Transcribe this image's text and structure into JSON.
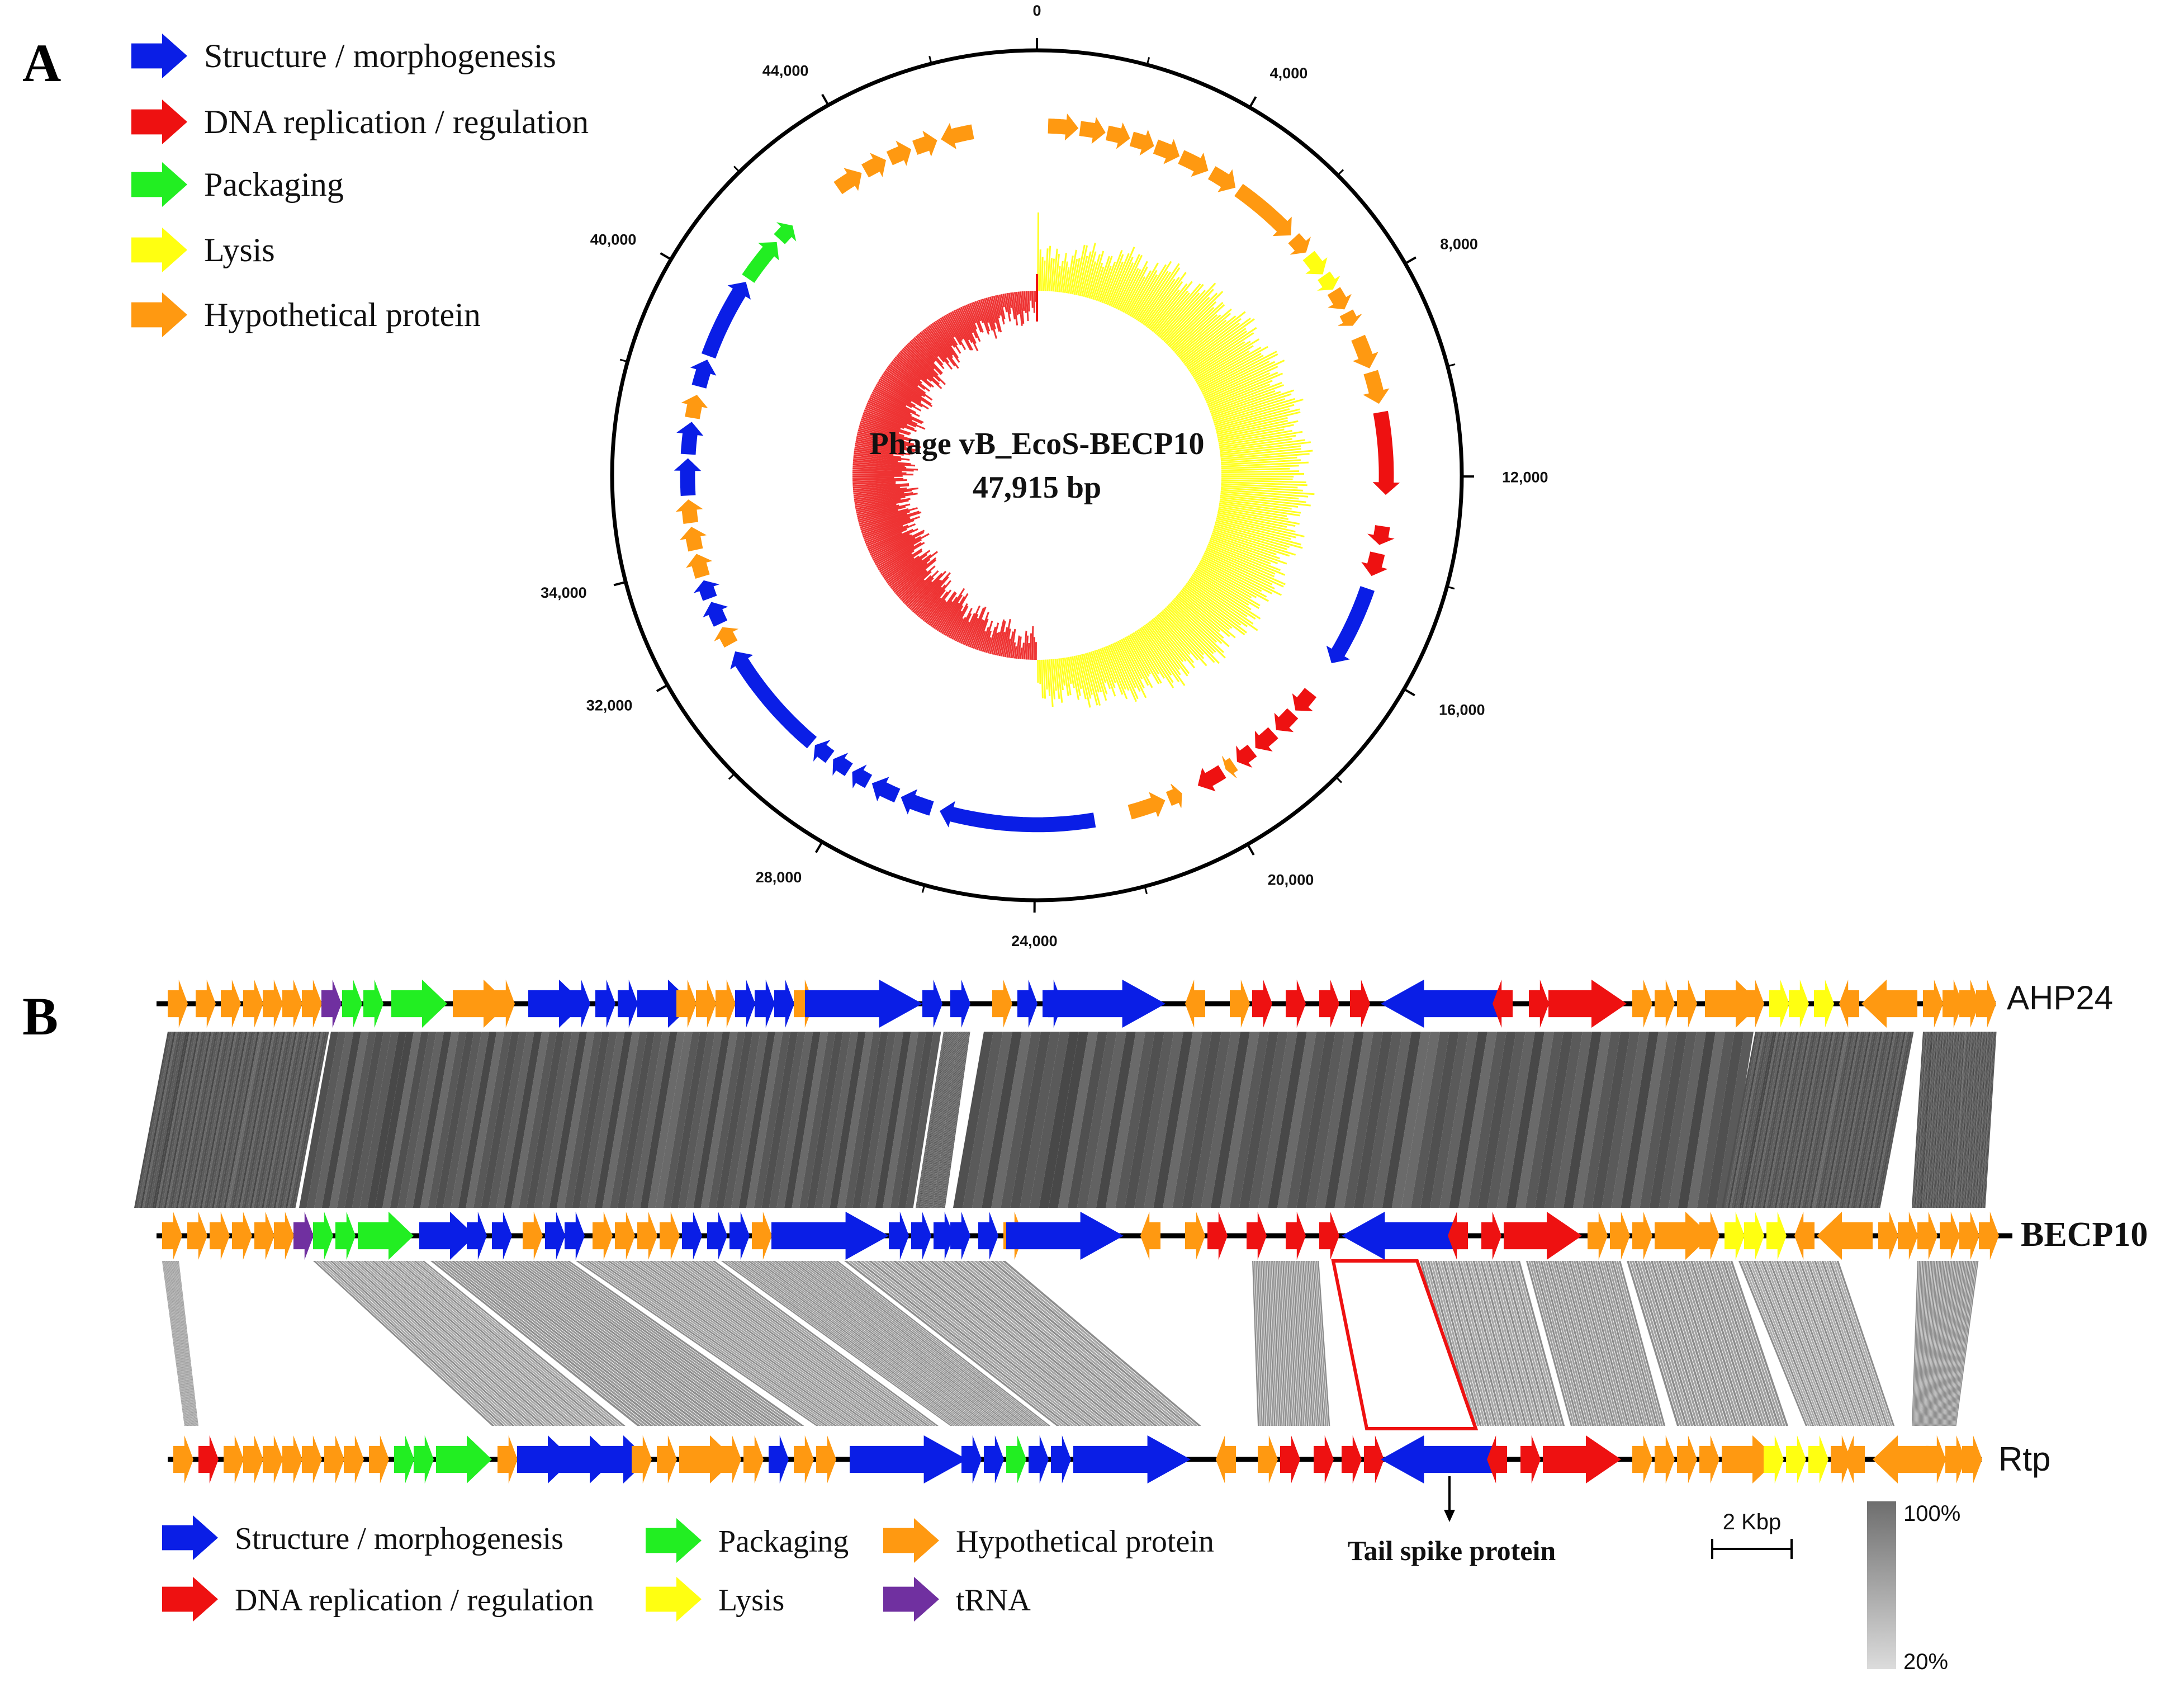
{
  "panels": {
    "a": "A",
    "b": "B"
  },
  "colors": {
    "structure": "#0a1ee6",
    "replication": "#ee1111",
    "packaging": "#22ee22",
    "lysis": "#ffff11",
    "hypothetical": "#ff9911",
    "trna": "#7030a0"
  },
  "legend_a": [
    {
      "key": "structure",
      "label": "Structure / morphogenesis"
    },
    {
      "key": "replication",
      "label": "DNA replication  / regulation"
    },
    {
      "key": "packaging",
      "label": "Packaging"
    },
    {
      "key": "lysis",
      "label": "Lysis"
    },
    {
      "key": "hypothetical",
      "label": "Hypothetical protein"
    }
  ],
  "circular_map": {
    "title": "Phage vB_EcoS-BECP10",
    "size_label": "47,915 bp",
    "genome_length": 47915,
    "ticks": [
      0,
      4000,
      8000,
      12000,
      16000,
      20000,
      24000,
      28000,
      32000,
      34000,
      40000,
      44000
    ],
    "tick_labels": [
      "0",
      "4,000",
      "8,000",
      "12,000",
      "16,000",
      "20,000",
      "24,000",
      "28,000",
      "32,000",
      "34,000",
      "40,000",
      "44,000"
    ]
  },
  "comparison": {
    "genomes": [
      "AHP24",
      "BECP10",
      "Rtp"
    ],
    "scale_label": "2 Kbp",
    "gradient_max": "100%",
    "gradient_min": "20%",
    "annotation": "Tail spike protein"
  },
  "legend_b": [
    {
      "key": "structure",
      "label": "Structure / morphogenesis"
    },
    {
      "key": "packaging",
      "label": "Packaging"
    },
    {
      "key": "hypothetical",
      "label": "Hypothetical protein"
    },
    {
      "key": "replication",
      "label": "DNA replication  / regulation"
    },
    {
      "key": "lysis",
      "label": "Lysis"
    },
    {
      "key": "trna",
      "label": "tRNA"
    }
  ]
}
